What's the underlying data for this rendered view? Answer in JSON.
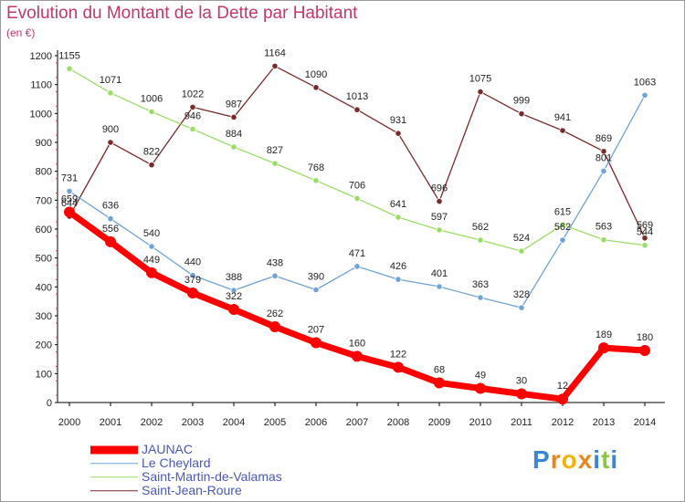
{
  "chart_data": {
    "type": "line",
    "title": "Evolution du Montant de la Dette par Habitant",
    "subtitle": "(en €)",
    "x": [
      "2000",
      "2001",
      "2002",
      "2003",
      "2004",
      "2005",
      "2006",
      "2007",
      "2008",
      "2009",
      "2010",
      "2011",
      "2012",
      "2013",
      "2014"
    ],
    "ylim": [
      0,
      1200
    ],
    "yticks": [
      0,
      100,
      200,
      300,
      400,
      500,
      600,
      700,
      800,
      900,
      1000,
      1100,
      1200
    ],
    "grid": false,
    "legend_position": "bottom-left",
    "series": [
      {
        "name": "JAUNAC",
        "color": "#ff0000",
        "values": [
          659,
          556,
          449,
          379,
          322,
          262,
          207,
          160,
          122,
          68,
          49,
          30,
          12,
          189,
          180
        ],
        "labels": [
          "659",
          "556",
          "449",
          "379",
          "322",
          "262",
          "207",
          "160",
          "122",
          "68",
          "49",
          "30",
          "12",
          "189",
          "180"
        ]
      },
      {
        "name": "Le Cheylard",
        "color": "#6fa3d8",
        "values": [
          731,
          636,
          540,
          440,
          388,
          438,
          390,
          471,
          426,
          401,
          363,
          328,
          562,
          801,
          1063
        ],
        "labels": [
          "731",
          "636",
          "540",
          "440",
          "388",
          "438",
          "390",
          "471",
          "426",
          "401",
          "363",
          "328",
          "562",
          "801",
          "1063"
        ]
      },
      {
        "name": "Saint-Martin-de-Valamas",
        "color": "#99dd66",
        "values": [
          1155,
          1071,
          1006,
          946,
          884,
          827,
          768,
          706,
          641,
          597,
          562,
          524,
          615,
          563,
          544
        ],
        "labels": [
          "1155",
          "1071",
          "1006",
          "946",
          "884",
          "827",
          "768",
          "706",
          "641",
          "597",
          "562",
          "524",
          "615",
          "563",
          "544"
        ]
      },
      {
        "name": "Saint-Jean-Roure",
        "color": "#7a2a2a",
        "values": [
          644,
          900,
          822,
          1022,
          987,
          1164,
          1090,
          1013,
          931,
          696,
          1075,
          999,
          941,
          869,
          569
        ],
        "labels": [
          "644",
          "900",
          "822",
          "1022",
          "987",
          "1164",
          "1090",
          "1013",
          "931",
          "696",
          "1075",
          "999",
          "941",
          "869",
          "569"
        ]
      }
    ]
  },
  "brand": {
    "letters": [
      "P",
      "r",
      "o",
      "x",
      "i",
      "t",
      "i"
    ],
    "colors": [
      "#3a86d6",
      "#e8861e",
      "#f0b400",
      "#e8861e",
      "#3a86d6",
      "#8cc63f",
      "#3a86d6"
    ]
  }
}
